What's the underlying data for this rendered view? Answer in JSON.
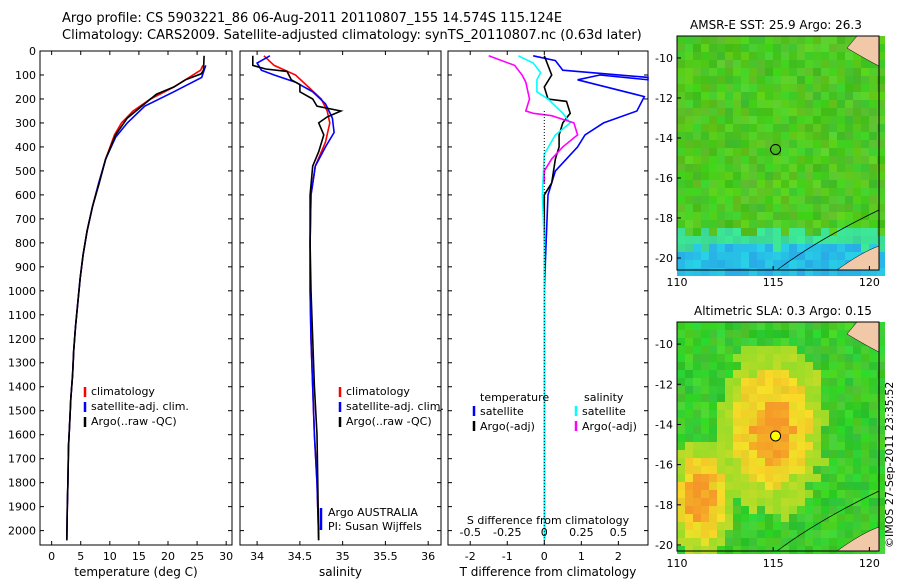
{
  "header": {
    "line1": "Argo profile: CS 5903221_86 06-Aug-2011 20110807_155 14.574S 115.124E",
    "line2": "Climatology: CARS2009. Satellite-adjusted climatology: synTS_20110807.nc (0.63d later)"
  },
  "colors": {
    "climatology": "#ff0000",
    "satellite": "#0000ff",
    "argo": "#000000",
    "sat_salinity": "#00ffff",
    "argo_salinity_adj": "#ff00ff"
  },
  "chart_data": [
    {
      "type": "line",
      "xlabel": "temperature (deg C)",
      "xlim": [
        -2,
        31
      ],
      "xticks": [
        0,
        5,
        10,
        15,
        20,
        25,
        30
      ],
      "ylim": [
        2060,
        0
      ],
      "yticks": [
        0,
        100,
        200,
        300,
        400,
        500,
        600,
        700,
        800,
        900,
        1000,
        1100,
        1200,
        1300,
        1400,
        1500,
        1600,
        1700,
        1800,
        1900,
        2000
      ],
      "legend": [
        "climatology",
        "satellite-adj. clim.",
        "Argo(..raw -QC)"
      ],
      "series": [
        {
          "name": "climatology",
          "color": "#ff0000",
          "x": [
            26.0,
            25.6,
            21,
            17,
            14,
            12,
            10.8,
            9.3,
            8.1,
            7.0,
            6.1,
            5.4,
            4.9,
            4.5,
            4.1,
            3.8,
            3.6,
            3.3,
            3.1,
            2.9,
            2.8,
            2.7,
            2.6
          ],
          "y": [
            60,
            80,
            150,
            200,
            250,
            300,
            350,
            450,
            550,
            650,
            750,
            850,
            950,
            1050,
            1150,
            1250,
            1350,
            1450,
            1550,
            1650,
            1800,
            1900,
            2040
          ]
        },
        {
          "name": "satellite-adj. clim.",
          "color": "#0000ff",
          "x": [
            26.5,
            26.2,
            25.8,
            21,
            16,
            13,
            11,
            9.3,
            8.1,
            7.0,
            6.1,
            5.4,
            4.9,
            4.5,
            4.1,
            3.8,
            3.6,
            3.3,
            3.1,
            2.9,
            2.8,
            2.7,
            2.6
          ],
          "y": [
            60,
            80,
            110,
            170,
            230,
            300,
            360,
            450,
            550,
            650,
            750,
            850,
            950,
            1050,
            1150,
            1250,
            1350,
            1450,
            1550,
            1650,
            1800,
            1900,
            2040
          ]
        },
        {
          "name": "Argo(..raw -QC)",
          "color": "#000000",
          "x": [
            26.2,
            26.1,
            25.7,
            23,
            21,
            18,
            16,
            13,
            11,
            9.3,
            8.2,
            7.0,
            6.1,
            5.4,
            4.9,
            4.5,
            4.1,
            3.8,
            3.6,
            3.3,
            3.1,
            2.9,
            2.8,
            2.7,
            2.6
          ],
          "y": [
            20,
            80,
            95,
            120,
            150,
            180,
            220,
            280,
            350,
            450,
            550,
            650,
            750,
            850,
            950,
            1050,
            1150,
            1250,
            1350,
            1450,
            1550,
            1650,
            1800,
            1900,
            2040
          ]
        }
      ]
    },
    {
      "type": "line",
      "xlabel": "salinity",
      "xlim": [
        33.8,
        36.15
      ],
      "xticks": [
        34,
        34.5,
        35,
        35.5,
        36
      ],
      "ylim": [
        2060,
        0
      ],
      "legend": [
        "climatology",
        "satellite-adj. clim.",
        "Argo(..raw -QC)"
      ],
      "annotations": [
        "Argo AUSTRALIA",
        "PI: Susan Wijffels"
      ],
      "series": [
        {
          "name": "climatology",
          "color": "#ff0000",
          "x": [
            34.08,
            34.2,
            34.45,
            34.6,
            34.75,
            34.82,
            34.85,
            34.8,
            34.68,
            34.63,
            34.62,
            34.62,
            34.63,
            34.65,
            34.67,
            34.7,
            34.72
          ],
          "y": [
            20,
            60,
            100,
            150,
            200,
            250,
            300,
            380,
            480,
            600,
            800,
            1000,
            1200,
            1400,
            1600,
            1800,
            2040
          ]
        },
        {
          "name": "satellite-adj. clim.",
          "color": "#0000ff",
          "x": [
            34.15,
            34.0,
            34.05,
            34.2,
            34.45,
            34.65,
            34.8,
            34.88,
            34.9,
            34.8,
            34.68,
            34.63,
            34.62,
            34.62,
            34.63,
            34.65,
            34.67,
            34.7,
            34.72
          ],
          "y": [
            20,
            50,
            80,
            100,
            130,
            170,
            220,
            280,
            340,
            400,
            480,
            600,
            800,
            1000,
            1200,
            1400,
            1600,
            1800,
            2040
          ]
        },
        {
          "name": "Argo(..raw -QC)",
          "color": "#000000",
          "x": [
            33.95,
            33.95,
            34.1,
            34.35,
            34.4,
            34.5,
            34.5,
            34.65,
            34.7,
            34.98,
            34.82,
            34.72,
            34.78,
            34.72,
            34.65,
            34.62,
            34.62,
            34.63,
            34.65,
            34.67,
            34.7,
            34.72
          ],
          "y": [
            20,
            60,
            75,
            85,
            120,
            140,
            170,
            200,
            230,
            250,
            275,
            300,
            350,
            420,
            480,
            600,
            800,
            1000,
            1200,
            1400,
            1600,
            2040
          ]
        }
      ]
    },
    {
      "type": "line",
      "xlabel": "T difference from climatology",
      "xlabel_top": "S difference from climatology",
      "xlim": [
        -2.6,
        2.8
      ],
      "xticks": [
        -2,
        -1,
        0,
        1,
        2
      ],
      "xticks_top": [
        "-0.5",
        "-0.25",
        "0",
        "0.25",
        "0.5"
      ],
      "ylim": [
        2060,
        0
      ],
      "legend": {
        "temperature": [
          "satellite",
          "Argo(-adj)"
        ],
        "salinity": [
          "satellite",
          "Argo(-adj)"
        ]
      },
      "series": [
        {
          "name": "satellite",
          "group": "temperature",
          "color": "#0000ff",
          "x": [
            -0.3,
            0.3,
            0.5,
            2.8,
            2.8,
            1.5,
            0.9,
            2.7,
            2.5,
            1.6,
            1.1,
            0.9,
            0.6,
            0.3,
            0.1,
            0.05,
            0,
            0,
            0,
            0
          ],
          "y": [
            20,
            40,
            80,
            110,
            120,
            100,
            120,
            190,
            250,
            300,
            350,
            400,
            450,
            500,
            600,
            800,
            1000,
            1400,
            1800,
            2040
          ]
        },
        {
          "name": "Argo(-adj)",
          "group": "temperature",
          "color": "#000000",
          "x": [
            0,
            0.2,
            0,
            0.1,
            0.6,
            0.7,
            0.5,
            0.4,
            0.4,
            0.3,
            0.2,
            0,
            0,
            0,
            0,
            0
          ],
          "y": [
            20,
            100,
            150,
            200,
            210,
            260,
            300,
            350,
            400,
            450,
            550,
            600,
            800,
            1000,
            1400,
            2040
          ]
        },
        {
          "name": "satellite",
          "group": "salinity",
          "color": "#00ffff",
          "x": [
            -0.7,
            -0.3,
            -0.1,
            -0.2,
            -0.2,
            0.1,
            0.3,
            0.5,
            0.7,
            0.3,
            0,
            -0.05,
            0,
            0,
            0
          ],
          "y": [
            20,
            50,
            90,
            120,
            170,
            200,
            230,
            260,
            300,
            350,
            430,
            600,
            800,
            1300,
            2040
          ]
        },
        {
          "name": "Argo(-adj)",
          "group": "salinity",
          "color": "#ff00ff",
          "x": [
            -1.5,
            -0.8,
            -0.6,
            -0.5,
            -0.4,
            -0.5,
            -0.3,
            0.2,
            0.4,
            0.8,
            0.9,
            0.5,
            0.2,
            0,
            0
          ],
          "y": [
            20,
            60,
            100,
            130,
            200,
            250,
            260,
            270,
            280,
            300,
            350,
            400,
            450,
            500,
            550
          ]
        }
      ]
    }
  ],
  "maps": [
    {
      "title": "AMSR-E SST: 25.9  Argo: 26.3",
      "xticks": [
        "110",
        "115",
        "120"
      ],
      "yticks": [
        "-10",
        "-12",
        "-14",
        "-16",
        "-18",
        "-20"
      ],
      "xlim": [
        110,
        120.5
      ],
      "ylim": [
        -20.6,
        -8.9
      ],
      "marker": {
        "lon": 115.124,
        "lat": -14.574,
        "fill": "none"
      }
    },
    {
      "title": "Altimetric SLA: 0.3  Argo: 0.15",
      "xticks": [
        "110",
        "115",
        "120"
      ],
      "yticks": [
        "-10",
        "-12",
        "-14",
        "-16",
        "-18",
        "-20"
      ],
      "xlim": [
        110,
        120.5
      ],
      "ylim": [
        -20.3,
        -8.9
      ],
      "marker": {
        "lon": 115.124,
        "lat": -14.574,
        "fill": "#ffff00"
      }
    }
  ],
  "credit": "©IMOS 27-Sep-2011 23:35:52"
}
